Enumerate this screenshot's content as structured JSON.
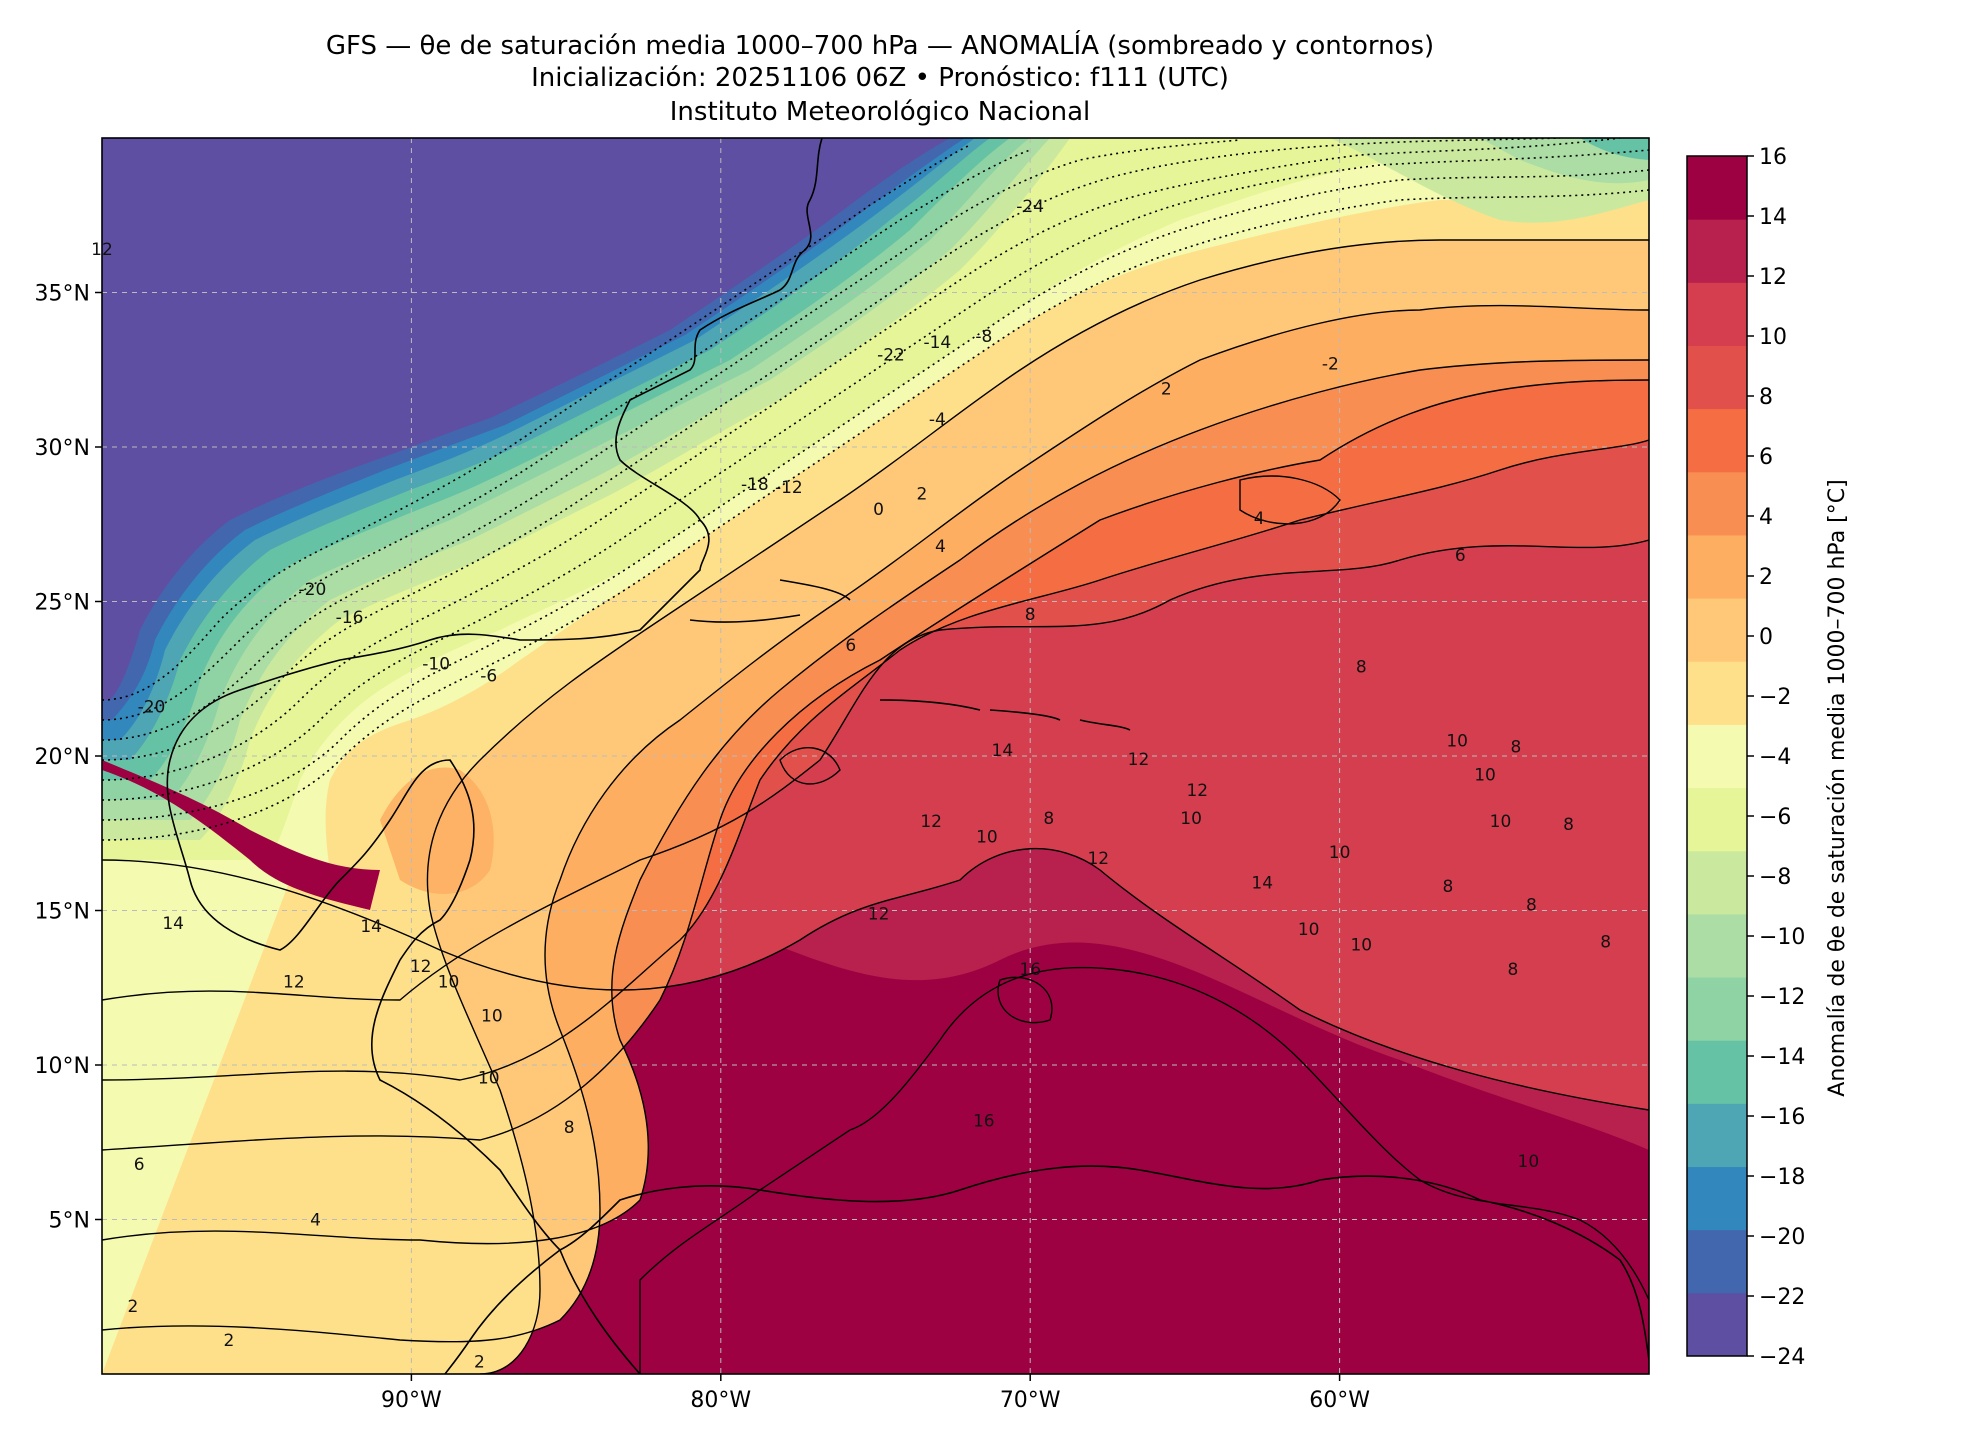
{
  "title": {
    "line1": "GFS — θe de saturación media 1000–700 hPa — ANOMALÍA (sombreado y contornos)",
    "line2": "Inicialización: 20251106 06Z   •   Pronóstico: f111 (UTC)",
    "line3": "Instituto Meteorológico Nacional"
  },
  "map": {
    "lon_min": -100,
    "lon_max": -50,
    "lat_min": 0,
    "lat_max": 40,
    "lon_ticks": [
      {
        "value": -90,
        "label": "90°W"
      },
      {
        "value": -80,
        "label": "80°W"
      },
      {
        "value": -70,
        "label": "70°W"
      },
      {
        "value": -60,
        "label": "60°W"
      }
    ],
    "lat_ticks": [
      {
        "value": 35,
        "label": "35°N"
      },
      {
        "value": 30,
        "label": "30°N"
      },
      {
        "value": 25,
        "label": "25°N"
      },
      {
        "value": 20,
        "label": "20°N"
      },
      {
        "value": 15,
        "label": "15°N"
      },
      {
        "value": 10,
        "label": "10°N"
      },
      {
        "value": 5,
        "label": "5°N"
      }
    ],
    "gridlines": true,
    "contour_labels": [
      {
        "text": "-24",
        "lon": -70.0,
        "lat": 37.8
      },
      {
        "text": "-22",
        "lon": -74.5,
        "lat": 33.0
      },
      {
        "text": "-14",
        "lon": -73.0,
        "lat": 33.4
      },
      {
        "text": "-8",
        "lon": -71.5,
        "lat": 33.6
      },
      {
        "text": "-4",
        "lon": -73.0,
        "lat": 30.9
      },
      {
        "text": "-18",
        "lon": -78.9,
        "lat": 28.8
      },
      {
        "text": "-12",
        "lon": -77.8,
        "lat": 28.7
      },
      {
        "text": "0",
        "lon": -74.9,
        "lat": 28.0
      },
      {
        "text": "2",
        "lon": -73.5,
        "lat": 28.5
      },
      {
        "text": "4",
        "lon": -72.9,
        "lat": 26.8
      },
      {
        "text": "-2",
        "lon": -60.3,
        "lat": 32.7
      },
      {
        "text": "2",
        "lon": -65.6,
        "lat": 31.9
      },
      {
        "text": "4",
        "lon": -62.6,
        "lat": 27.7
      },
      {
        "text": "6",
        "lon": -56.1,
        "lat": 26.5
      },
      {
        "text": "8",
        "lon": -70.0,
        "lat": 24.6
      },
      {
        "text": "6",
        "lon": -75.8,
        "lat": 23.6
      },
      {
        "text": "8",
        "lon": -59.3,
        "lat": 22.9
      },
      {
        "text": "-20",
        "lon": -93.2,
        "lat": 25.4
      },
      {
        "text": "-16",
        "lon": -92.0,
        "lat": 24.5
      },
      {
        "text": "-10",
        "lon": -89.2,
        "lat": 23.0
      },
      {
        "text": "-6",
        "lon": -87.5,
        "lat": 22.6
      },
      {
        "text": "-20",
        "lon": -98.4,
        "lat": 21.6
      },
      {
        "text": "14",
        "lon": -70.9,
        "lat": 20.2
      },
      {
        "text": "12",
        "lon": -66.5,
        "lat": 19.9
      },
      {
        "text": "10",
        "lon": -56.2,
        "lat": 20.5
      },
      {
        "text": "8",
        "lon": -54.3,
        "lat": 20.3
      },
      {
        "text": "10",
        "lon": -55.3,
        "lat": 19.4
      },
      {
        "text": "12",
        "lon": -64.6,
        "lat": 18.9
      },
      {
        "text": "10",
        "lon": -64.8,
        "lat": 18.0
      },
      {
        "text": "12",
        "lon": -73.2,
        "lat": 17.9
      },
      {
        "text": "8",
        "lon": -69.4,
        "lat": 18.0
      },
      {
        "text": "10",
        "lon": -71.4,
        "lat": 17.4
      },
      {
        "text": "12",
        "lon": -67.8,
        "lat": 16.7
      },
      {
        "text": "10",
        "lon": -60.0,
        "lat": 16.9
      },
      {
        "text": "14",
        "lon": -62.5,
        "lat": 15.9
      },
      {
        "text": "10",
        "lon": -54.8,
        "lat": 17.9
      },
      {
        "text": "8",
        "lon": -52.6,
        "lat": 17.8
      },
      {
        "text": "8",
        "lon": -56.5,
        "lat": 15.8
      },
      {
        "text": "8",
        "lon": -53.8,
        "lat": 15.2
      },
      {
        "text": "10",
        "lon": -61.0,
        "lat": 14.4
      },
      {
        "text": "10",
        "lon": -59.3,
        "lat": 13.9
      },
      {
        "text": "8",
        "lon": -51.4,
        "lat": 14.0
      },
      {
        "text": "8",
        "lon": -54.4,
        "lat": 13.1
      },
      {
        "text": "12",
        "lon": -74.9,
        "lat": 14.9
      },
      {
        "text": "16",
        "lon": -70.0,
        "lat": 13.1
      },
      {
        "text": "16",
        "lon": -71.5,
        "lat": 8.2
      },
      {
        "text": "10",
        "lon": -53.9,
        "lat": 6.9
      },
      {
        "text": "14",
        "lon": -97.7,
        "lat": 14.6
      },
      {
        "text": "14",
        "lon": -91.3,
        "lat": 14.5
      },
      {
        "text": "12",
        "lon": -93.8,
        "lat": 12.7
      },
      {
        "text": "12",
        "lon": -89.7,
        "lat": 13.2
      },
      {
        "text": "10",
        "lon": -88.8,
        "lat": 12.7
      },
      {
        "text": "10",
        "lon": -87.4,
        "lat": 11.6
      },
      {
        "text": "10",
        "lon": -87.5,
        "lat": 9.6
      },
      {
        "text": "8",
        "lon": -84.9,
        "lat": 8.0
      },
      {
        "text": "6",
        "lon": -98.8,
        "lat": 6.8
      },
      {
        "text": "4",
        "lon": -93.1,
        "lat": 5.0
      },
      {
        "text": "2",
        "lon": -99.0,
        "lat": 2.2
      },
      {
        "text": "2",
        "lon": -95.9,
        "lat": 1.1
      },
      {
        "text": "2",
        "lon": -87.8,
        "lat": 0.4
      },
      {
        "text": "12",
        "lon": -100.0,
        "lat": 36.4
      }
    ]
  },
  "colorbar": {
    "label": "Anomalía de θe de saturación media 1000–700 hPa [°C]",
    "ticks": [
      16,
      14,
      12,
      10,
      8,
      6,
      4,
      2,
      0,
      -2,
      -4,
      -6,
      -8,
      -10,
      -12,
      -14,
      -16,
      -18,
      -20,
      -22,
      -24
    ],
    "tick_labels": [
      "16",
      "14",
      "12",
      "10",
      "8",
      "6",
      "4",
      "2",
      "0",
      "−2",
      "−4",
      "−6",
      "−8",
      "−10",
      "−12",
      "−14",
      "−16",
      "−18",
      "−20",
      "−22",
      "−24"
    ],
    "colors": [
      "#5e4fa2",
      "#4267af",
      "#3288bd",
      "#4ea5b3",
      "#66c2a5",
      "#8fd2a4",
      "#abdda4",
      "#cbe99e",
      "#e6f598",
      "#f4fab0",
      "#fee08b",
      "#fec878",
      "#fdae61",
      "#f98e52",
      "#f46d43",
      "#e1504b",
      "#d53e4f",
      "#b8204d",
      "#9e0142"
    ]
  }
}
